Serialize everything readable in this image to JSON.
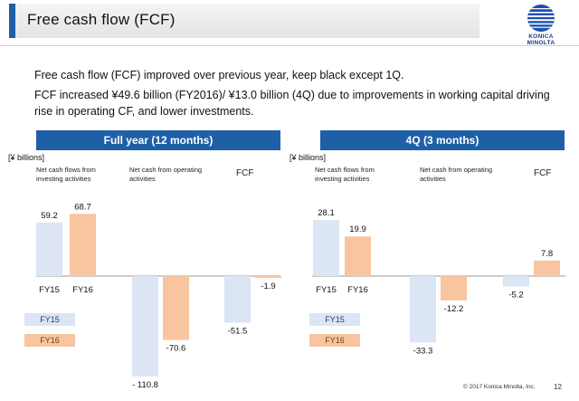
{
  "header": {
    "title": "Free cash flow (FCF)",
    "logo_text": "KONICA MINOLTA"
  },
  "summary": {
    "line1": "Free cash flow (FCF) improved over previous year, keep black except 1Q.",
    "line2": "FCF increased ¥49.6 billion (FY2016)/ ¥13.0 billion (4Q) due to improvements in working capital driving rise in operating CF, and lower investments."
  },
  "colors": {
    "fy15": "#dbe5f3",
    "fy16": "#f8c5a0",
    "header": "#1f5fa8"
  },
  "legend": {
    "fy15": "FY15",
    "fy16": "FY16"
  },
  "footer": {
    "copyright": "© 2017 Konica Minolta, Inc.",
    "page": "12"
  },
  "chart_data": [
    {
      "type": "bar",
      "title": "Full year (12 months)",
      "unit": "[¥ billions]",
      "categories": [
        "Net cash flows from investing activities",
        "Net cash from operating activities",
        "FCF"
      ],
      "category_ticks": [
        "FY15",
        "FY16"
      ],
      "series": [
        {
          "name": "FY15",
          "values": [
            59.2,
            -110.8,
            -51.5
          ],
          "labels": [
            "59.2",
            "- 110.8",
            "-51.5"
          ]
        },
        {
          "name": "FY16",
          "values": [
            68.7,
            -70.6,
            -1.9
          ],
          "labels": [
            "68.7",
            "-70.6",
            "-1.9"
          ]
        }
      ]
    },
    {
      "type": "bar",
      "title": "4Q (3 months)",
      "unit": "[¥ billions]",
      "categories": [
        "Net cash flows from investing activities",
        "Net cash from operating activities",
        "FCF"
      ],
      "category_ticks": [
        "FY15",
        "FY16"
      ],
      "series": [
        {
          "name": "FY15",
          "values": [
            28.1,
            -33.3,
            -5.2
          ],
          "labels": [
            "28.1",
            "-33.3",
            "-5.2"
          ]
        },
        {
          "name": "FY16",
          "values": [
            19.9,
            -12.2,
            7.8
          ],
          "labels": [
            "19.9",
            "-12.2",
            "7.8"
          ]
        }
      ]
    }
  ]
}
